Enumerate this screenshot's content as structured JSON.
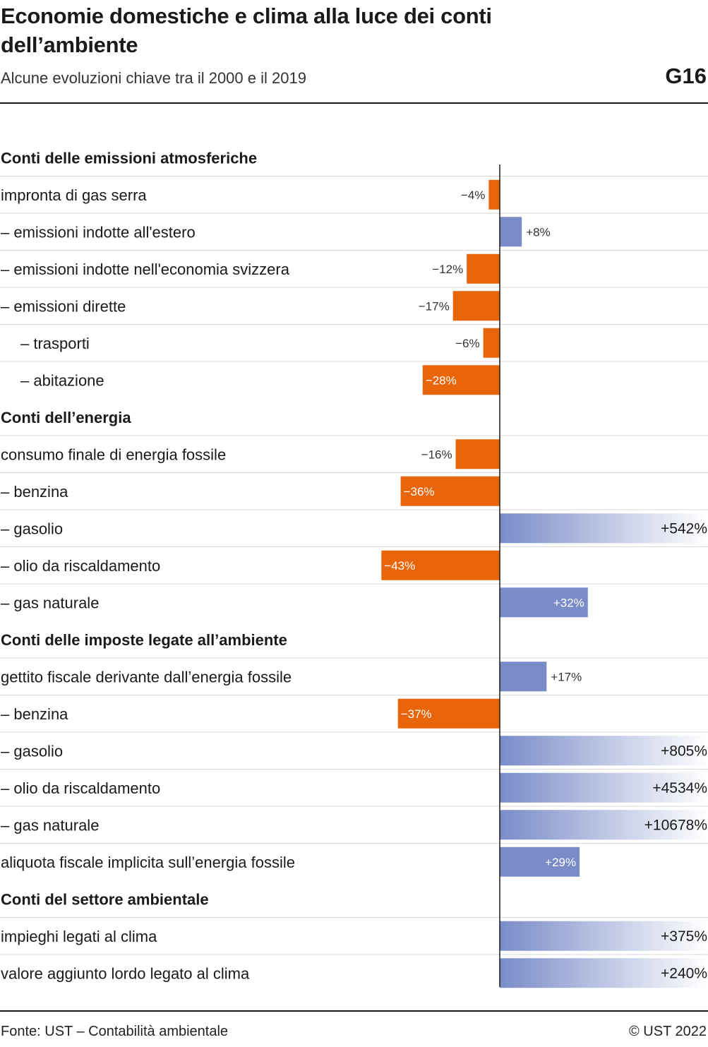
{
  "header": {
    "title": "Economie domestiche e clima alla luce dei conti dell’ambiente",
    "subtitle": "Alcune evoluzioni chiave tra il 2000 e il 2019",
    "code": "G16"
  },
  "footer": {
    "source": "Fonte: UST – Contabilità ambientale",
    "copyright": "© UST 2022"
  },
  "chart_data": {
    "type": "bar",
    "orientation": "horizontal",
    "unit": "%",
    "grid": false,
    "colors": {
      "negative": "#e8650a",
      "positive": "#7a8cc8",
      "positive_fade": "#ffffff",
      "axis": "#1a1a1a",
      "row_line": "#d9d9d9"
    },
    "sections": [
      {
        "title": "Conti delle emissioni atmosferiche",
        "rows": [
          {
            "label": "impronta di gas serra",
            "value": -4,
            "display": "−4%"
          },
          {
            "label": "– emissioni indotte all'estero",
            "value": 8,
            "display": "+8%"
          },
          {
            "label": "– emissioni indotte nell'economia svizzera",
            "value": -12,
            "display": "−12%"
          },
          {
            "label": "– emissioni dirette",
            "value": -17,
            "display": "−17%"
          },
          {
            "label": "– trasporti",
            "value": -6,
            "display": "−6%",
            "indent": 2
          },
          {
            "label": "– abitazione",
            "value": -28,
            "display": "−28%",
            "indent": 2
          }
        ]
      },
      {
        "title": "Conti dell’energia",
        "rows": [
          {
            "label": "consumo finale di energia fossile",
            "value": -16,
            "display": "−16%"
          },
          {
            "label": "– benzina",
            "value": -36,
            "display": "−36%"
          },
          {
            "label": "– gasolio",
            "value": 542,
            "display": "+542%"
          },
          {
            "label": "– olio da riscaldamento",
            "value": -43,
            "display": "−43%"
          },
          {
            "label": "– gas naturale",
            "value": 32,
            "display": "+32%"
          }
        ]
      },
      {
        "title": "Conti delle imposte legate all’ambiente",
        "rows": [
          {
            "label": "gettito fiscale derivante dall’energia fossile",
            "value": 17,
            "display": "+17%"
          },
          {
            "label": "– benzina",
            "value": -37,
            "display": "−37%"
          },
          {
            "label": "– gasolio",
            "value": 805,
            "display": "+805%"
          },
          {
            "label": "– olio da riscaldamento",
            "value": 4534,
            "display": "+4534%"
          },
          {
            "label": "– gas naturale",
            "value": 10678,
            "display": "+10678%"
          },
          {
            "label": "aliquota fiscale implicita sull’energia fossile",
            "value": 29,
            "display": "+29%"
          }
        ]
      },
      {
        "title": "Conti del settore ambientale",
        "rows": [
          {
            "label": "impieghi legati al clima",
            "value": 375,
            "display": "+375%"
          },
          {
            "label": "valore aggiunto lordo legato al clima",
            "value": 240,
            "display": "+240%"
          }
        ]
      }
    ]
  }
}
